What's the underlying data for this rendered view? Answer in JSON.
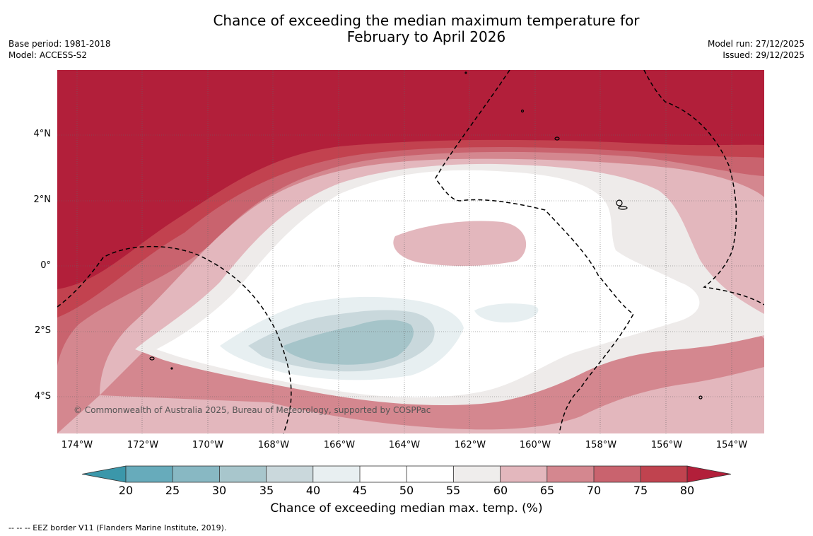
{
  "title": {
    "line1": "Chance of exceeding the median maximum temperature for",
    "line2": "February to April 2026"
  },
  "meta_left": {
    "base_period": "Base period: 1981-2018",
    "model": "Model: ACCESS-S2"
  },
  "meta_right": {
    "model_run": "Model run: 27/12/2025",
    "issued": "Issued: 29/12/2025"
  },
  "map": {
    "credit": "© Commonwealth of Australia 2025, Bureau of Meteorology, supported by COSPPac",
    "lat_labels": [
      "4°N",
      "2°N",
      "0°",
      "2°S",
      "4°S"
    ],
    "lon_labels": [
      "174°W",
      "172°W",
      "170°W",
      "168°W",
      "166°W",
      "164°W",
      "162°W",
      "160°W",
      "158°W",
      "156°W",
      "154°W"
    ],
    "colors": {
      "c80": "#b21f3a",
      "c75": "#c2424f",
      "c70": "#c9636e",
      "c65": "#d4878f",
      "c60": "#e3b7bd",
      "c55": "#eeebea",
      "c45": "#ffffff",
      "c40": "#e7eff1",
      "c35": "#c9d8dc",
      "c30": "#a5c4c9",
      "land": "#000000",
      "eez": "#000000"
    }
  },
  "colorbar": {
    "title": "Chance of exceeding median max. temp. (%)",
    "ticks": [
      "20",
      "25",
      "30",
      "35",
      "40",
      "45",
      "50",
      "55",
      "60",
      "65",
      "70",
      "75",
      "80"
    ],
    "colors": {
      "under": "#3b97aa",
      "b20": "#67abbb",
      "b25": "#88b8c3",
      "b30": "#a8c6cc",
      "b35": "#cad8dc",
      "b40": "#e8eff1",
      "b45": "#ffffff",
      "b50": "#ffffff",
      "b55": "#efedec",
      "b60": "#e3b7bd",
      "b65": "#d4878f",
      "b70": "#c9636e",
      "b75": "#c0434f",
      "over": "#b21f3a"
    }
  },
  "footnote": "--  --  -- EEZ border V11 (Flanders Marine Institute, 2019)."
}
